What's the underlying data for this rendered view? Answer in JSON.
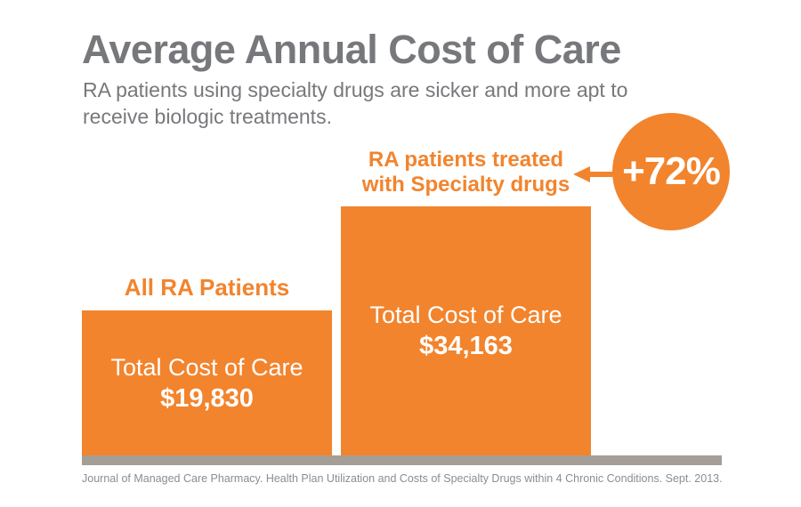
{
  "header": {
    "title": "Average Annual Cost of Care",
    "subtitle_lines": [
      "RA patients using specialty drugs are sicker and more apt to",
      "receive biologic treatments."
    ]
  },
  "chart_data": {
    "type": "bar",
    "title": "Average Annual Cost of Care",
    "subtitle": "RA patients using specialty drugs are sicker and more apt to receive biologic treatments.",
    "categories": [
      "All RA Patients",
      "RA patients treated with Specialty drugs"
    ],
    "values": [
      19830,
      34163
    ],
    "value_labels": [
      "$19,830",
      "$34,163"
    ],
    "inner_label": "Total Cost of Care",
    "annotation": "+72%",
    "ylim": [
      0,
      34163
    ],
    "grid": false,
    "legend": false,
    "bar_color": "#F2842D",
    "baseline_color": "#A59E96"
  },
  "labels": {
    "bar2_category_line1": "RA patients treated",
    "bar2_category_line2": "with Specialty drugs"
  },
  "icons": {
    "arrow_icon": "left-arrow"
  },
  "colors": {
    "accent_orange": "#F2842D",
    "title_gray": "#77787B",
    "footer_gray": "#8C8D90",
    "baseline_taupe": "#A59E96"
  },
  "footer": {
    "source": "Journal of Managed Care Pharmacy. Health Plan Utilization and Costs of Specialty Drugs within 4 Chronic Conditions. Sept. 2013."
  }
}
